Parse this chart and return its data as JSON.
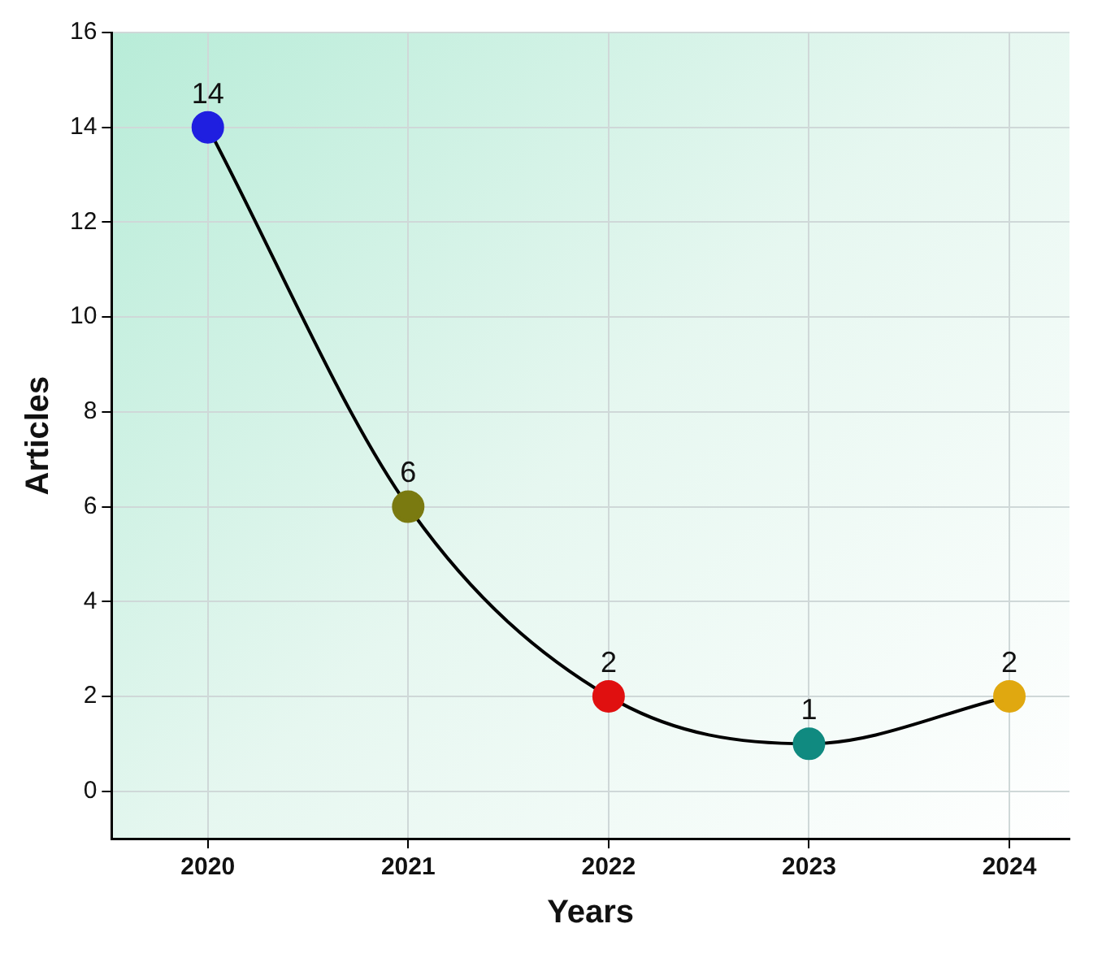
{
  "chart_data": {
    "type": "line",
    "xlabel": "Years",
    "ylabel": "Articles",
    "x": [
      2020,
      2021,
      2022,
      2023,
      2024
    ],
    "series": [
      {
        "color": "#000000",
        "colors": [
          "#1f1fe0",
          "#7a7a10",
          "#e01010",
          "#108a80",
          "#e0a810"
        ],
        "values": [
          14,
          6,
          2,
          1,
          2
        ]
      }
    ],
    "xlim": [
      2019.52,
      2024.3
    ],
    "xticks": [
      2020,
      2021,
      2022,
      2023,
      2024
    ],
    "ylim": [
      -1,
      16
    ],
    "yticks": [
      0,
      2,
      4,
      6,
      8,
      10,
      12,
      14,
      16
    ],
    "grid": true,
    "marker": "circle",
    "line_style": "solid",
    "data_labels": true,
    "legend": false
  }
}
